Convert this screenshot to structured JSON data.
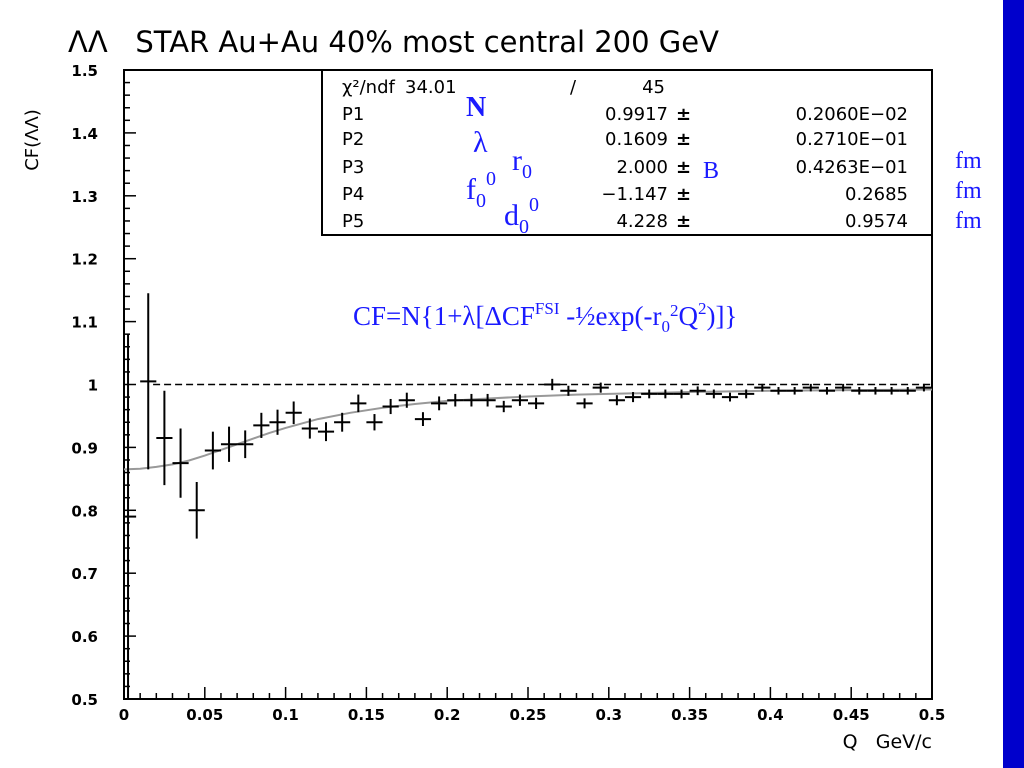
{
  "chart_data": {
    "type": "scatter",
    "title": "ΛΛ   STAR Au+Au 40% most central 200 GeV",
    "xlabel": "Q   GeV/c",
    "ylabel": "CF(ΛΛ)",
    "xlim": [
      0,
      0.5
    ],
    "ylim": [
      0.5,
      1.5
    ],
    "xticks": [
      "0",
      "0.05",
      "0.1",
      "0.15",
      "0.2",
      "0.25",
      "0.3",
      "0.35",
      "0.4",
      "0.45",
      "0.5"
    ],
    "yticks": [
      "0.5",
      "0.6",
      "0.7",
      "0.8",
      "0.9",
      "1",
      "1.1",
      "1.2",
      "1.3",
      "1.4",
      "1.5"
    ],
    "reference_line_y": 1.0,
    "grid": false,
    "series": [
      {
        "type": "errorbar",
        "color": "#000000",
        "points": [
          {
            "x": 0.0025,
            "y": 0.79,
            "err": 0.29
          },
          {
            "x": 0.015,
            "y": 1.005,
            "err": 0.14
          },
          {
            "x": 0.025,
            "y": 0.915,
            "err": 0.075
          },
          {
            "x": 0.035,
            "y": 0.875,
            "err": 0.055
          },
          {
            "x": 0.045,
            "y": 0.8,
            "err": 0.045
          },
          {
            "x": 0.055,
            "y": 0.895,
            "err": 0.03
          },
          {
            "x": 0.065,
            "y": 0.905,
            "err": 0.028
          },
          {
            "x": 0.075,
            "y": 0.905,
            "err": 0.022
          },
          {
            "x": 0.085,
            "y": 0.935,
            "err": 0.02
          },
          {
            "x": 0.095,
            "y": 0.94,
            "err": 0.02
          },
          {
            "x": 0.105,
            "y": 0.955,
            "err": 0.018
          },
          {
            "x": 0.115,
            "y": 0.93,
            "err": 0.016
          },
          {
            "x": 0.125,
            "y": 0.925,
            "err": 0.015
          },
          {
            "x": 0.135,
            "y": 0.94,
            "err": 0.015
          },
          {
            "x": 0.145,
            "y": 0.97,
            "err": 0.014
          },
          {
            "x": 0.155,
            "y": 0.94,
            "err": 0.013
          },
          {
            "x": 0.165,
            "y": 0.965,
            "err": 0.012
          },
          {
            "x": 0.175,
            "y": 0.975,
            "err": 0.012
          },
          {
            "x": 0.185,
            "y": 0.945,
            "err": 0.011
          },
          {
            "x": 0.195,
            "y": 0.97,
            "err": 0.011
          },
          {
            "x": 0.205,
            "y": 0.975,
            "err": 0.01
          },
          {
            "x": 0.215,
            "y": 0.975,
            "err": 0.01
          },
          {
            "x": 0.225,
            "y": 0.975,
            "err": 0.01
          },
          {
            "x": 0.235,
            "y": 0.965,
            "err": 0.009
          },
          {
            "x": 0.245,
            "y": 0.975,
            "err": 0.009
          },
          {
            "x": 0.255,
            "y": 0.97,
            "err": 0.009
          },
          {
            "x": 0.265,
            "y": 1.0,
            "err": 0.009
          },
          {
            "x": 0.275,
            "y": 0.99,
            "err": 0.008
          },
          {
            "x": 0.285,
            "y": 0.97,
            "err": 0.008
          },
          {
            "x": 0.295,
            "y": 0.995,
            "err": 0.008
          },
          {
            "x": 0.305,
            "y": 0.975,
            "err": 0.008
          },
          {
            "x": 0.315,
            "y": 0.98,
            "err": 0.008
          },
          {
            "x": 0.325,
            "y": 0.985,
            "err": 0.007
          },
          {
            "x": 0.335,
            "y": 0.985,
            "err": 0.007
          },
          {
            "x": 0.345,
            "y": 0.985,
            "err": 0.007
          },
          {
            "x": 0.355,
            "y": 0.99,
            "err": 0.007
          },
          {
            "x": 0.365,
            "y": 0.985,
            "err": 0.007
          },
          {
            "x": 0.375,
            "y": 0.98,
            "err": 0.007
          },
          {
            "x": 0.385,
            "y": 0.985,
            "err": 0.007
          },
          {
            "x": 0.395,
            "y": 0.995,
            "err": 0.006
          },
          {
            "x": 0.405,
            "y": 0.99,
            "err": 0.006
          },
          {
            "x": 0.415,
            "y": 0.99,
            "err": 0.006
          },
          {
            "x": 0.425,
            "y": 0.995,
            "err": 0.006
          },
          {
            "x": 0.435,
            "y": 0.99,
            "err": 0.006
          },
          {
            "x": 0.445,
            "y": 0.995,
            "err": 0.006
          },
          {
            "x": 0.455,
            "y": 0.99,
            "err": 0.006
          },
          {
            "x": 0.465,
            "y": 0.99,
            "err": 0.006
          },
          {
            "x": 0.475,
            "y": 0.99,
            "err": 0.006
          },
          {
            "x": 0.485,
            "y": 0.99,
            "err": 0.006
          },
          {
            "x": 0.495,
            "y": 0.995,
            "err": 0.006
          }
        ]
      },
      {
        "type": "line",
        "color": "#999999",
        "x": [
          0,
          0.01,
          0.02,
          0.03,
          0.04,
          0.05,
          0.06,
          0.07,
          0.08,
          0.09,
          0.1,
          0.12,
          0.14,
          0.16,
          0.18,
          0.2,
          0.22,
          0.25,
          0.28,
          0.3,
          0.35,
          0.4,
          0.45,
          0.5
        ],
        "y": [
          0.865,
          0.866,
          0.869,
          0.873,
          0.879,
          0.887,
          0.896,
          0.905,
          0.914,
          0.923,
          0.931,
          0.945,
          0.955,
          0.963,
          0.969,
          0.974,
          0.977,
          0.981,
          0.984,
          0.985,
          0.988,
          0.99,
          0.991,
          0.992
        ]
      }
    ],
    "stats_box": {
      "header": {
        "name": "χ²/ndf",
        "value": "34.01",
        "sep": "/",
        "error": "45"
      },
      "rows": [
        {
          "name": "P1",
          "value": "0.9917",
          "pm": "±",
          "error": "0.2060E−02"
        },
        {
          "name": "P2",
          "value": "0.1609",
          "pm": "±",
          "error": "0.2710E−01"
        },
        {
          "name": "P3",
          "value": "2.000",
          "pm": "±",
          "error": "0.4263E−01"
        },
        {
          "name": "P4",
          "value": "−1.147",
          "pm": "±",
          "error": "0.2685"
        },
        {
          "name": "P5",
          "value": "4.228",
          "pm": "±",
          "error": "0.9574"
        }
      ]
    },
    "annotations": {
      "p1_symbol": "N",
      "p2_symbol": "λ",
      "p3_symbol": "r",
      "p3_sub": "0",
      "p4_symbol": "f",
      "p4_sub": "0",
      "p4_sup": "0",
      "p5_symbol": "d",
      "p5_sub": "0",
      "p5_sup": "0",
      "stray_mark": "B",
      "units": [
        "fm",
        "fm",
        "fm"
      ],
      "formula": {
        "part1": "CF=N{1+λ[ΔCF",
        "sup1": "FSI",
        "part2": " -½exp(-r",
        "sub": "0",
        "sup2": "2",
        "part3": "Q",
        "sup3": "2",
        "part4": ")]}"
      }
    },
    "colors": {
      "annotation": "#1a1aff",
      "side_bar": "#0000cc",
      "fit_line": "#999999"
    }
  }
}
